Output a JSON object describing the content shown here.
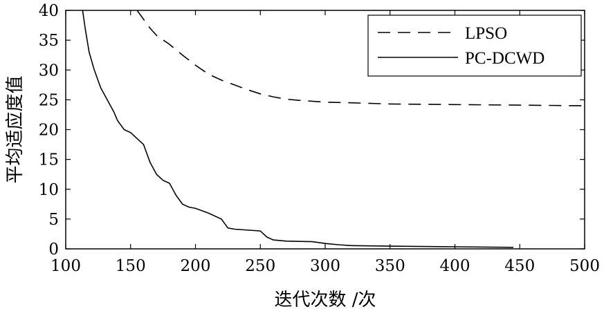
{
  "chart_data": {
    "type": "line",
    "xlabel": "迭代次数 /次",
    "ylabel": "平均适应度值",
    "xlim": [
      100,
      500
    ],
    "ylim": [
      0,
      40
    ],
    "xticks": [
      "100",
      "150",
      "200",
      "250",
      "300",
      "350",
      "400",
      "450",
      "500"
    ],
    "yticks": [
      "0",
      "5",
      "10",
      "15",
      "20",
      "25",
      "30",
      "35",
      "40"
    ],
    "grid": false,
    "legend_position": "top-right",
    "series": [
      {
        "name": "LPSO",
        "style": "dashed",
        "color": "#000000",
        "x": [
          155,
          160,
          165,
          170,
          180,
          190,
          200,
          210,
          220,
          230,
          240,
          250,
          260,
          270,
          280,
          300,
          320,
          350,
          400,
          450,
          500
        ],
        "y": [
          40,
          38.5,
          37,
          35.8,
          34.3,
          32.5,
          30.8,
          29.3,
          28.3,
          27.5,
          26.7,
          26,
          25.5,
          25.1,
          24.9,
          24.6,
          24.5,
          24.3,
          24.2,
          24.1,
          24
        ]
      },
      {
        "name": "PC-DCWD",
        "style": "solid",
        "color": "#000000",
        "x": [
          113,
          115,
          118,
          122,
          127,
          132,
          137,
          140,
          145,
          150,
          155,
          160,
          165,
          170,
          175,
          180,
          185,
          190,
          195,
          200,
          210,
          220,
          225,
          230,
          250,
          255,
          260,
          270,
          290,
          300,
          310,
          320,
          350,
          400,
          445
        ],
        "y": [
          40,
          37,
          33,
          30,
          27,
          25,
          23,
          21.5,
          20,
          19.5,
          18.5,
          17.5,
          14.5,
          12.5,
          11.5,
          11,
          9,
          7.5,
          7,
          6.8,
          6,
          5,
          3.5,
          3.3,
          3,
          2,
          1.5,
          1.3,
          1.2,
          0.9,
          0.7,
          0.55,
          0.45,
          0.35,
          0.25
        ]
      }
    ]
  }
}
